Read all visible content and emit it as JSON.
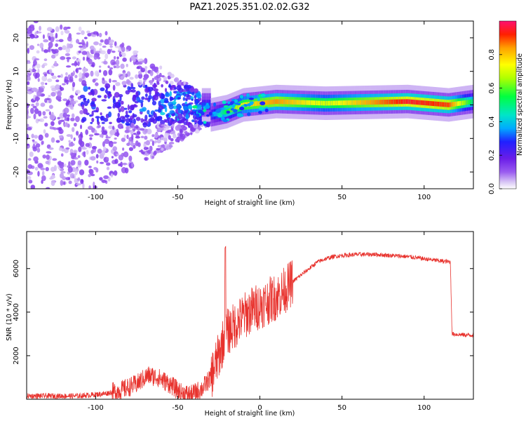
{
  "title": "PAZ1.2025.351.02.02.G32",
  "colors": {
    "snr_line": "#e8332e",
    "axes": "#000000",
    "colormap": [
      "#ffffff",
      "#d8c6f5",
      "#9a5cf0",
      "#6b1de8",
      "#2020ff",
      "#00aaff",
      "#00e5c8",
      "#00ff40",
      "#b0ff00",
      "#ffff00",
      "#ffa000",
      "#ff2000",
      "#ff1070"
    ]
  },
  "chart_data": [
    {
      "type": "heatmap",
      "name": "spectrogram",
      "xlabel": "Height of straight line (km)",
      "ylabel": "Frequency (Hz)",
      "xlim": [
        -142,
        130
      ],
      "ylim": [
        -25,
        25
      ],
      "xticks": [
        -100,
        -50,
        0,
        50,
        100
      ],
      "xtick_labels": [
        "-100",
        "-50",
        "0",
        "50",
        "100"
      ],
      "yticks": [
        -20,
        -10,
        0,
        10,
        20
      ],
      "ytick_labels": [
        "-20",
        "-10",
        "0",
        "10",
        "20"
      ],
      "colorbar": {
        "label": "Normalized spectral amplitude",
        "range": [
          0,
          1
        ],
        "ticks": [
          0.0,
          0.2,
          0.4,
          0.6,
          0.8
        ],
        "tick_labels": [
          "0.0",
          "0.2",
          "0.4",
          "0.6",
          "0.8"
        ]
      },
      "ridge": {
        "description_points": [
          {
            "x": -30,
            "freq": -3,
            "amp": 0.3
          },
          {
            "x": -20,
            "freq": -2,
            "amp": 0.55
          },
          {
            "x": -10,
            "freq": 0,
            "amp": 0.75
          },
          {
            "x": 0,
            "freq": 0.5,
            "amp": 0.8
          },
          {
            "x": 10,
            "freq": 1,
            "amp": 0.85
          },
          {
            "x": 40,
            "freq": 0.5,
            "amp": 0.7
          },
          {
            "x": 90,
            "freq": 1,
            "amp": 0.95
          },
          {
            "x": 115,
            "freq": 0,
            "amp": 0.9
          },
          {
            "x": 130,
            "freq": 1,
            "amp": 0.5
          }
        ],
        "noise_region": {
          "x_range": [
            -142,
            -30
          ],
          "freq_spread": 25
        }
      }
    },
    {
      "type": "line",
      "name": "snr",
      "xlabel": "Height of straight line (km)",
      "ylabel": "SNR (10 * v/v)",
      "xlim": [
        -142,
        130
      ],
      "ylim": [
        0,
        7700
      ],
      "xticks": [
        -100,
        -50,
        0,
        50,
        100
      ],
      "xtick_labels": [
        "-100",
        "-50",
        "0",
        "50",
        "100"
      ],
      "yticks": [
        2000,
        4000,
        6000
      ],
      "ytick_labels": [
        "2000",
        "4000",
        "6000"
      ],
      "series": [
        {
          "name": "SNR",
          "x": [
            -142,
            -110,
            -95,
            -85,
            -75,
            -68,
            -62,
            -55,
            -48,
            -42,
            -35,
            -30,
            -25,
            -21,
            -15,
            -10,
            -5,
            0,
            5,
            10,
            15,
            20,
            25,
            30,
            35,
            40,
            45,
            50,
            60,
            70,
            80,
            90,
            100,
            110,
            116,
            117,
            125,
            130
          ],
          "y": [
            150,
            150,
            250,
            400,
            700,
            1100,
            1000,
            700,
            300,
            200,
            500,
            1000,
            2000,
            3000,
            3400,
            3800,
            4100,
            4300,
            4500,
            4700,
            5000,
            5400,
            5700,
            6000,
            6300,
            6450,
            6550,
            6600,
            6650,
            6650,
            6600,
            6550,
            6450,
            6350,
            6300,
            3000,
            2950,
            2950
          ]
        }
      ]
    }
  ]
}
